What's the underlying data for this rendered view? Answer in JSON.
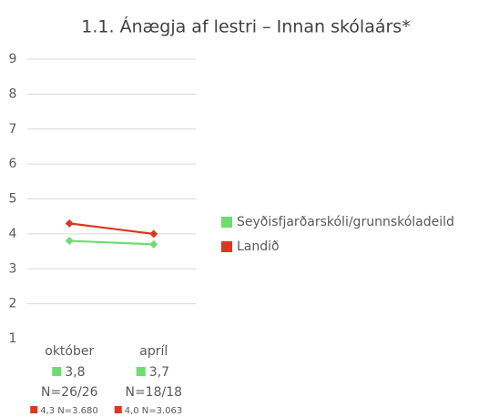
{
  "chart_data": {
    "type": "line",
    "title": "1.1. Ánægja af lestri – Innan skólaárs*",
    "categories": [
      "október",
      "apríl"
    ],
    "series": [
      {
        "name": "Seyðisfjarðarskóli/grunnskóladeild",
        "color": "#6fdc6f",
        "values": [
          3.8,
          3.7
        ],
        "value_labels": [
          "3,8",
          "3,7"
        ],
        "n_labels": [
          "N=26/26",
          "N=18/18"
        ]
      },
      {
        "name": "Landið",
        "color": "#d9391e",
        "values": [
          4.3,
          4.0
        ],
        "value_labels": [
          "4,3",
          "4,0"
        ],
        "n_labels": [
          "N=3.680",
          "N=3.063"
        ]
      }
    ],
    "ylim": [
      1,
      9
    ],
    "yticks": [
      1,
      2,
      3,
      4,
      5,
      6,
      7,
      8,
      9
    ],
    "grid": true,
    "legend": "right"
  }
}
